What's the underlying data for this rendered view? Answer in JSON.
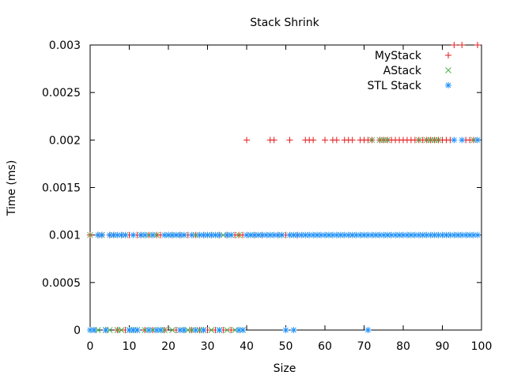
{
  "chart_data": {
    "type": "scatter",
    "title": "Stack Shrink",
    "xlabel": "Size",
    "ylabel": "Time (ms)",
    "xlim": [
      0,
      100
    ],
    "ylim": [
      0,
      0.003
    ],
    "xticks": [
      0,
      10,
      20,
      30,
      40,
      50,
      60,
      70,
      80,
      90,
      100
    ],
    "xtick_labels": [
      "0",
      "10",
      "20",
      "30",
      "40",
      "50",
      "60",
      "70",
      "80",
      "90",
      "100"
    ],
    "yticks": [
      0,
      0.0005,
      0.001,
      0.0015,
      0.002,
      0.0025,
      0.003
    ],
    "ytick_labels": [
      "0",
      "0.0005",
      "0.001",
      "0.0015",
      "0.002",
      "0.0025",
      "0.003"
    ],
    "grid": false,
    "legend_position": "top-right",
    "series": [
      {
        "name": "MyStack",
        "color": "#e41a1c",
        "marker": "plus",
        "points": [
          [
            0,
            0.001
          ],
          [
            2,
            0.001
          ],
          [
            3,
            0.001
          ],
          [
            5,
            0.001
          ],
          [
            6,
            0.001
          ],
          [
            8,
            0.001
          ],
          [
            10,
            0.001
          ],
          [
            12,
            0.001
          ],
          [
            13,
            0.001
          ],
          [
            15,
            0.001
          ],
          [
            17,
            0.001
          ],
          [
            18,
            0.001
          ],
          [
            20,
            0.001
          ],
          [
            21,
            0.001
          ],
          [
            23,
            0.001
          ],
          [
            25,
            0.001
          ],
          [
            27,
            0.001
          ],
          [
            29,
            0.001
          ],
          [
            31,
            0.001
          ],
          [
            33,
            0.001
          ],
          [
            35,
            0.001
          ],
          [
            37,
            0.001
          ],
          [
            38,
            0.001
          ],
          [
            39,
            0.001
          ],
          [
            42,
            0.001
          ],
          [
            44,
            0.001
          ],
          [
            48,
            0.001
          ],
          [
            50,
            0.001
          ],
          [
            53,
            0.001
          ],
          [
            1,
            0
          ],
          [
            4,
            0
          ],
          [
            7,
            0
          ],
          [
            9,
            0
          ],
          [
            11,
            0
          ],
          [
            14,
            0
          ],
          [
            16,
            0
          ],
          [
            19,
            0
          ],
          [
            22,
            0
          ],
          [
            24,
            0
          ],
          [
            26,
            0
          ],
          [
            28,
            0
          ],
          [
            30,
            0
          ],
          [
            32,
            0
          ],
          [
            34,
            0
          ],
          [
            36,
            0
          ],
          [
            40,
            0.002
          ],
          [
            46,
            0.002
          ],
          [
            47,
            0.002
          ],
          [
            51,
            0.002
          ],
          [
            55,
            0.002
          ],
          [
            56,
            0.002
          ],
          [
            57,
            0.002
          ],
          [
            60,
            0.002
          ],
          [
            62,
            0.002
          ],
          [
            63,
            0.002
          ],
          [
            65,
            0.002
          ],
          [
            66,
            0.002
          ],
          [
            67,
            0.002
          ],
          [
            69,
            0.002
          ],
          [
            70,
            0.002
          ],
          [
            71,
            0.002
          ],
          [
            72,
            0.002
          ],
          [
            74,
            0.002
          ],
          [
            75,
            0.002
          ],
          [
            76,
            0.002
          ],
          [
            77,
            0.002
          ],
          [
            78,
            0.002
          ],
          [
            79,
            0.002
          ],
          [
            80,
            0.002
          ],
          [
            81,
            0.002
          ],
          [
            82,
            0.002
          ],
          [
            83,
            0.002
          ],
          [
            84,
            0.002
          ],
          [
            85,
            0.002
          ],
          [
            86,
            0.002
          ],
          [
            87,
            0.002
          ],
          [
            88,
            0.002
          ],
          [
            89,
            0.002
          ],
          [
            90,
            0.002
          ],
          [
            91,
            0.002
          ],
          [
            92,
            0.002
          ],
          [
            96,
            0.002
          ],
          [
            97,
            0.002
          ],
          [
            98,
            0.002
          ],
          [
            93,
            0.003
          ],
          [
            95,
            0.003
          ],
          [
            99,
            0.003
          ]
        ]
      },
      {
        "name": "AStack",
        "color": "#4daf4a",
        "marker": "cross",
        "points": [
          [
            0,
            0.001
          ],
          [
            3,
            0.001
          ],
          [
            6,
            0.001
          ],
          [
            9,
            0.001
          ],
          [
            13,
            0.001
          ],
          [
            15,
            0.001
          ],
          [
            17,
            0.001
          ],
          [
            20,
            0.001
          ],
          [
            22,
            0.001
          ],
          [
            24,
            0.001
          ],
          [
            27,
            0.001
          ],
          [
            30,
            0.001
          ],
          [
            32,
            0.001
          ],
          [
            34,
            0.001
          ],
          [
            36,
            0.001
          ],
          [
            38,
            0.001
          ],
          [
            41,
            0.001
          ],
          [
            43,
            0.001
          ],
          [
            46,
            0.001
          ],
          [
            49,
            0.001
          ],
          [
            52,
            0.001
          ],
          [
            55,
            0.001
          ],
          [
            58,
            0.001
          ],
          [
            61,
            0.001
          ],
          [
            64,
            0.001
          ],
          [
            67,
            0.001
          ],
          [
            70,
            0.001
          ],
          [
            73,
            0.001
          ],
          [
            76,
            0.001
          ],
          [
            79,
            0.001
          ],
          [
            82,
            0.001
          ],
          [
            85,
            0.001
          ],
          [
            88,
            0.001
          ],
          [
            91,
            0.001
          ],
          [
            94,
            0.001
          ],
          [
            97,
            0.001
          ],
          [
            1,
            0
          ],
          [
            2,
            0
          ],
          [
            4,
            0
          ],
          [
            5,
            0
          ],
          [
            7,
            0
          ],
          [
            8,
            0
          ],
          [
            10,
            0
          ],
          [
            11,
            0
          ],
          [
            12,
            0
          ],
          [
            14,
            0
          ],
          [
            16,
            0
          ],
          [
            18,
            0
          ],
          [
            19,
            0
          ],
          [
            21,
            0
          ],
          [
            23,
            0
          ],
          [
            25,
            0
          ],
          [
            26,
            0
          ],
          [
            28,
            0
          ],
          [
            29,
            0
          ],
          [
            31,
            0
          ],
          [
            33,
            0
          ],
          [
            35,
            0
          ],
          [
            37,
            0
          ],
          [
            39,
            0
          ],
          [
            72,
            0.002
          ],
          [
            74,
            0.002
          ],
          [
            75,
            0.002
          ],
          [
            76,
            0.002
          ],
          [
            84,
            0.002
          ],
          [
            86,
            0.002
          ],
          [
            87,
            0.002
          ],
          [
            88,
            0.002
          ],
          [
            89,
            0.002
          ],
          [
            98,
            0.002
          ]
        ]
      },
      {
        "name": "STL Stack",
        "color": "#1e90ff",
        "marker": "star",
        "points": [
          [
            2,
            0.001
          ],
          [
            3,
            0.001
          ],
          [
            5,
            0.001
          ],
          [
            6,
            0.001
          ],
          [
            7,
            0.001
          ],
          [
            8,
            0.001
          ],
          [
            9,
            0.001
          ],
          [
            11,
            0.001
          ],
          [
            13,
            0.001
          ],
          [
            14,
            0.001
          ],
          [
            16,
            0.001
          ],
          [
            19,
            0.001
          ],
          [
            20,
            0.001
          ],
          [
            21,
            0.001
          ],
          [
            22,
            0.001
          ],
          [
            23,
            0.001
          ],
          [
            24,
            0.001
          ],
          [
            26,
            0.001
          ],
          [
            28,
            0.001
          ],
          [
            29,
            0.001
          ],
          [
            30,
            0.001
          ],
          [
            31,
            0.001
          ],
          [
            32,
            0.001
          ],
          [
            33,
            0.001
          ],
          [
            35,
            0.001
          ],
          [
            36,
            0.001
          ],
          [
            40,
            0.001
          ],
          [
            41,
            0.001
          ],
          [
            42,
            0.001
          ],
          [
            43,
            0.001
          ],
          [
            44,
            0.001
          ],
          [
            45,
            0.001
          ],
          [
            46,
            0.001
          ],
          [
            47,
            0.001
          ],
          [
            48,
            0.001
          ],
          [
            49,
            0.001
          ],
          [
            51,
            0.001
          ],
          [
            52,
            0.001
          ],
          [
            53,
            0.001
          ],
          [
            54,
            0.001
          ],
          [
            55,
            0.001
          ],
          [
            56,
            0.001
          ],
          [
            57,
            0.001
          ],
          [
            58,
            0.001
          ],
          [
            59,
            0.001
          ],
          [
            60,
            0.001
          ],
          [
            61,
            0.001
          ],
          [
            62,
            0.001
          ],
          [
            63,
            0.001
          ],
          [
            64,
            0.001
          ],
          [
            65,
            0.001
          ],
          [
            66,
            0.001
          ],
          [
            67,
            0.001
          ],
          [
            68,
            0.001
          ],
          [
            69,
            0.001
          ],
          [
            70,
            0.001
          ],
          [
            71,
            0.001
          ],
          [
            72,
            0.001
          ],
          [
            73,
            0.001
          ],
          [
            74,
            0.001
          ],
          [
            75,
            0.001
          ],
          [
            76,
            0.001
          ],
          [
            77,
            0.001
          ],
          [
            78,
            0.001
          ],
          [
            79,
            0.001
          ],
          [
            80,
            0.001
          ],
          [
            81,
            0.001
          ],
          [
            82,
            0.001
          ],
          [
            83,
            0.001
          ],
          [
            84,
            0.001
          ],
          [
            85,
            0.001
          ],
          [
            86,
            0.001
          ],
          [
            87,
            0.001
          ],
          [
            88,
            0.001
          ],
          [
            89,
            0.001
          ],
          [
            90,
            0.001
          ],
          [
            91,
            0.001
          ],
          [
            92,
            0.001
          ],
          [
            93,
            0.001
          ],
          [
            94,
            0.001
          ],
          [
            95,
            0.001
          ],
          [
            96,
            0.001
          ],
          [
            97,
            0.001
          ],
          [
            98,
            0.001
          ],
          [
            99,
            0.001
          ],
          [
            0,
            0
          ],
          [
            1,
            0
          ],
          [
            4,
            0
          ],
          [
            10,
            0
          ],
          [
            11,
            0
          ],
          [
            12,
            0
          ],
          [
            15,
            0
          ],
          [
            17,
            0
          ],
          [
            18,
            0
          ],
          [
            23,
            0
          ],
          [
            24,
            0
          ],
          [
            27,
            0
          ],
          [
            29,
            0
          ],
          [
            33,
            0
          ],
          [
            38,
            0
          ],
          [
            39,
            0
          ],
          [
            50,
            0
          ],
          [
            52,
            0
          ],
          [
            71,
            0
          ],
          [
            93,
            0.002
          ],
          [
            95,
            0.002
          ],
          [
            99,
            0.002
          ]
        ]
      }
    ]
  }
}
